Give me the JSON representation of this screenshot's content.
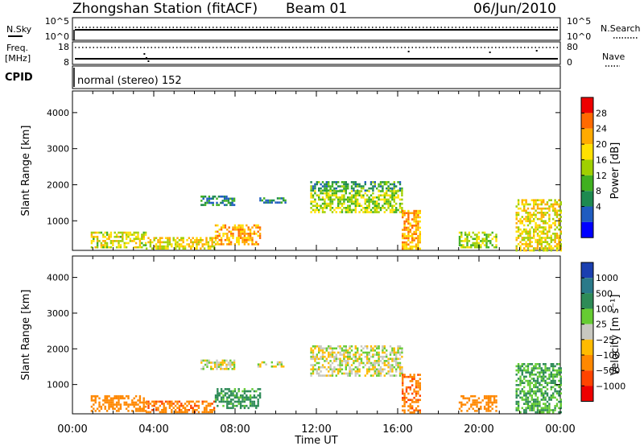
{
  "header": {
    "station": "Zhongshan Station (fitACF)",
    "beam": "Beam 01",
    "date": "06/Jun/2010"
  },
  "strips": {
    "nsky_label": "N.Sky",
    "nsky_ticks": [
      "10^5",
      "10^0"
    ],
    "nsearch_label": "N.Search",
    "nsearch_ticks": [
      "10^5",
      "10^0"
    ],
    "freq_label_top": "Freq.",
    "freq_label_unit": "[MHz]",
    "freq_ticks": [
      "18",
      "8"
    ],
    "nave_label": "Nave",
    "nave_ticks": [
      "80",
      "0"
    ],
    "cpid_label": "CPID",
    "cpid_text": "normal (stereo) 152"
  },
  "axes": {
    "ylabel": "Slant Range [km]",
    "yticks": [
      "4000",
      "3000",
      "2000",
      "1000"
    ],
    "xticks": [
      "00:00",
      "04:00",
      "08:00",
      "12:00",
      "16:00",
      "20:00",
      "00:00"
    ],
    "xlabel": "Time UT"
  },
  "chart_data": [
    {
      "type": "heatmap",
      "title": "Power",
      "x_range_hours": [
        0,
        24
      ],
      "y_range_km": [
        180,
        4600
      ],
      "yticks": [
        1000,
        2000,
        3000,
        4000
      ],
      "colorbar": {
        "label": "Power [dB]",
        "ticks": [
          "28",
          "24",
          "20",
          "16",
          "12",
          "8",
          "4"
        ],
        "colors": [
          "#ee0000",
          "#ff6a00",
          "#ffaa00",
          "#ffe000",
          "#a0d000",
          "#40b020",
          "#1e8a50",
          "#1f5cc0",
          "#0000ff"
        ]
      },
      "series": [
        {
          "hours": [
            0.9,
            3.6
          ],
          "km": [
            250,
            700
          ],
          "value": 18
        },
        {
          "hours": [
            3.6,
            7.0
          ],
          "km": [
            250,
            550
          ],
          "value": 20
        },
        {
          "hours": [
            7.0,
            9.2
          ],
          "km": [
            350,
            900
          ],
          "value": 24
        },
        {
          "hours": [
            6.3,
            8.0
          ],
          "km": [
            1450,
            1700
          ],
          "value": 8
        },
        {
          "hours": [
            9.1,
            10.5
          ],
          "km": [
            1500,
            1650
          ],
          "value": 8
        },
        {
          "hours": [
            11.7,
            16.2
          ],
          "km": [
            1850,
            2100
          ],
          "value": 10
        },
        {
          "hours": [
            11.7,
            16.2
          ],
          "km": [
            1250,
            1850
          ],
          "value": 16
        },
        {
          "hours": [
            16.2,
            17.1
          ],
          "km": [
            200,
            1300
          ],
          "value": 24
        },
        {
          "hours": [
            19.0,
            20.9
          ],
          "km": [
            250,
            700
          ],
          "value": 16
        },
        {
          "hours": [
            21.8,
            24.0
          ],
          "km": [
            200,
            1600
          ],
          "value": 20
        }
      ]
    },
    {
      "type": "heatmap",
      "title": "Velocity",
      "x_range_hours": [
        0,
        24
      ],
      "y_range_km": [
        180,
        4600
      ],
      "yticks": [
        1000,
        2000,
        3000,
        4000
      ],
      "colorbar": {
        "label": "Velocity [m s⁻¹]",
        "ticks": [
          "1000",
          "500",
          "100",
          "25",
          "−25",
          "−100",
          "−500",
          "−1000"
        ],
        "colors": [
          "#1a3fb0",
          "#2a7a8a",
          "#2e8b57",
          "#66cc33",
          "#c8c8c0",
          "#ffbb00",
          "#ff8800",
          "#ff4400",
          "#ee0000"
        ]
      },
      "series": [
        {
          "hours": [
            0.9,
            3.6
          ],
          "km": [
            250,
            700
          ],
          "value": -250
        },
        {
          "hours": [
            3.6,
            7.0
          ],
          "km": [
            250,
            550
          ],
          "value": -400
        },
        {
          "hours": [
            7.0,
            9.2
          ],
          "km": [
            350,
            900
          ],
          "value": 150
        },
        {
          "hours": [
            6.3,
            8.0
          ],
          "km": [
            1450,
            1700
          ],
          "value": 0
        },
        {
          "hours": [
            9.1,
            10.5
          ],
          "km": [
            1500,
            1650
          ],
          "value": 0
        },
        {
          "hours": [
            11.7,
            16.2
          ],
          "km": [
            1250,
            2100
          ],
          "value": 0
        },
        {
          "hours": [
            16.2,
            17.1
          ],
          "km": [
            200,
            1300
          ],
          "value": -400
        },
        {
          "hours": [
            19.0,
            20.9
          ],
          "km": [
            250,
            700
          ],
          "value": -250
        },
        {
          "hours": [
            21.8,
            24.0
          ],
          "km": [
            200,
            1600
          ],
          "value": 100
        }
      ]
    }
  ]
}
